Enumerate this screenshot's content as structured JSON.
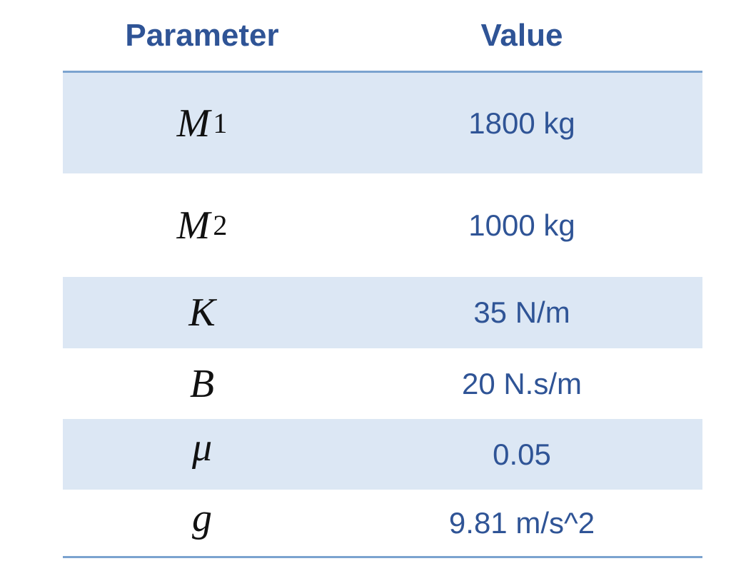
{
  "header": {
    "parameter": "Parameter",
    "value": "Value"
  },
  "rows": [
    {
      "symbol": "M",
      "sub": "1",
      "value": "1800 kg"
    },
    {
      "symbol": "M",
      "sub": "2",
      "value": "1000 kg"
    },
    {
      "symbol": "K",
      "sub": "",
      "value": "35 N/m"
    },
    {
      "symbol": "B",
      "sub": "",
      "value": "20 N.s/m"
    },
    {
      "symbol": "μ",
      "sub": "",
      "value": "0.05"
    },
    {
      "symbol": "g",
      "sub": "",
      "value": "9.81 m/s^2"
    }
  ],
  "colors": {
    "header_text": "#2f5496",
    "row_shade": "#dce7f4",
    "rule": "#7ba3cf"
  }
}
